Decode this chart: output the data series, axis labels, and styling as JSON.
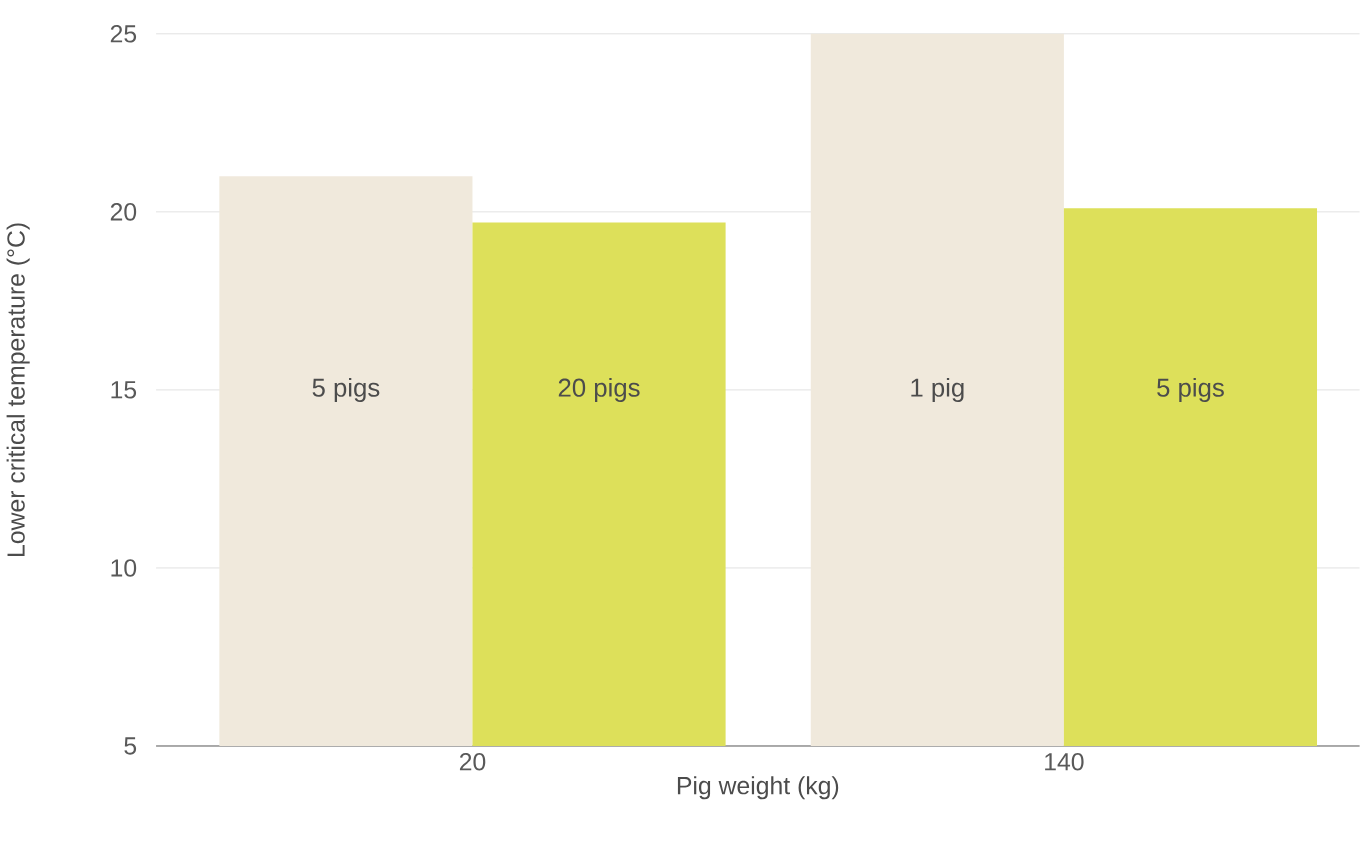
{
  "chart_data": {
    "type": "bar",
    "xlabel": "Pig weight (kg)",
    "ylabel": "Lower critical temperature (°C)",
    "categories": [
      "20",
      "140"
    ],
    "series": [
      {
        "color": "#f0e9dc",
        "values": [
          21,
          25
        ]
      },
      {
        "color": "#dde05a",
        "values": [
          19.7,
          20.1
        ]
      }
    ],
    "annotations": [
      "5 pigs",
      "20 pigs",
      "1 pig",
      "5 pigs"
    ],
    "ylim": [
      5,
      25
    ],
    "yticks": [
      5,
      10,
      15,
      20,
      25
    ],
    "grid": "y"
  }
}
